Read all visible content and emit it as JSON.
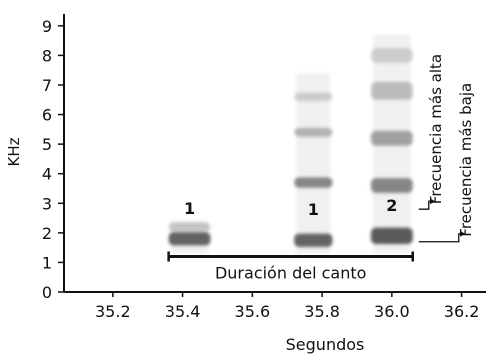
{
  "chart_data": {
    "type": "spectrogram",
    "xlabel": "Segundos",
    "ylabel": "KHz",
    "xlim": [
      35.06,
      36.27
    ],
    "ylim": [
      0,
      9.4
    ],
    "x_ticks": [
      35.2,
      35.4,
      35.6,
      35.8,
      36.0,
      36.2
    ],
    "y_ticks": [
      0,
      1,
      2,
      3,
      4,
      5,
      6,
      7,
      8,
      9
    ],
    "ink_color": "#404040",
    "syllables": [
      {
        "label": "1",
        "x_start": 35.36,
        "x_end": 35.48,
        "low_khz": 1.3,
        "high_khz": 2.4,
        "bands": [
          {
            "y": 1.8,
            "w": 0.45,
            "o": 0.8
          },
          {
            "y": 2.2,
            "w": 0.3,
            "o": 0.25
          }
        ]
      },
      {
        "label": "1",
        "x_start": 35.72,
        "x_end": 35.83,
        "low_khz": 1.3,
        "high_khz": 7.4,
        "bands": [
          {
            "y": 1.75,
            "w": 0.45,
            "o": 0.8
          },
          {
            "y": 3.7,
            "w": 0.35,
            "o": 0.6
          },
          {
            "y": 5.4,
            "w": 0.3,
            "o": 0.35
          },
          {
            "y": 6.6,
            "w": 0.3,
            "o": 0.2
          }
        ]
      },
      {
        "label": "2",
        "x_start": 35.94,
        "x_end": 36.06,
        "low_khz": 1.3,
        "high_khz": 8.7,
        "bands": [
          {
            "y": 1.9,
            "w": 0.55,
            "o": 0.85
          },
          {
            "y": 3.6,
            "w": 0.5,
            "o": 0.6
          },
          {
            "y": 5.2,
            "w": 0.5,
            "o": 0.45
          },
          {
            "y": 6.8,
            "w": 0.6,
            "o": 0.3
          },
          {
            "y": 8.0,
            "w": 0.5,
            "o": 0.2
          }
        ]
      }
    ],
    "duration": {
      "label": "Duración del canto",
      "x_start": 35.36,
      "x_end": 36.06,
      "y": 1.2
    },
    "annotations": [
      {
        "label": "Frecuencia más alta",
        "x": 36.06,
        "y": 2.8
      },
      {
        "label": "Frecuencia más baja",
        "x": 36.06,
        "y": 1.7
      }
    ]
  }
}
